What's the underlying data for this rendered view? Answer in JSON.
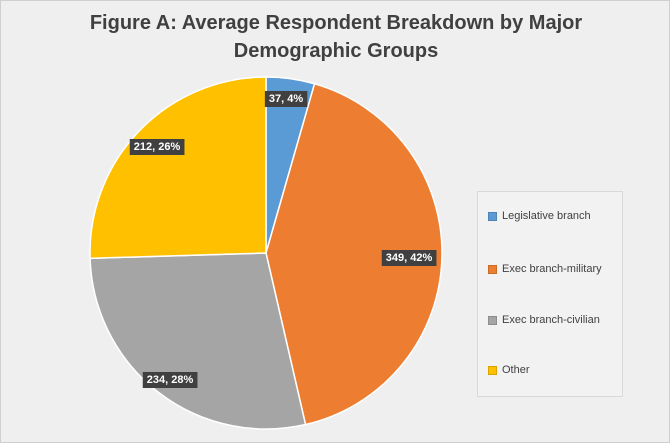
{
  "chart_data": {
    "type": "pie",
    "title": "Figure A: Average Respondent Breakdown by Major Demographic Groups",
    "title_lines": [
      "Figure A: Average Respondent Breakdown by Major",
      "Demographic Groups"
    ],
    "slices": [
      {
        "name": "Legislative branch",
        "value": 37,
        "percent": 4,
        "label": "37, 4%",
        "color": "#5b9bd5"
      },
      {
        "name": "Exec branch-military",
        "value": 349,
        "percent": 42,
        "label": "349, 42%",
        "color": "#ed7d31"
      },
      {
        "name": "Exec branch-civilian",
        "value": 234,
        "percent": 28,
        "label": "234, 28%",
        "color": "#a5a5a5"
      },
      {
        "name": "Other",
        "value": 212,
        "percent": 26,
        "label": "212, 26%",
        "color": "#ffc000"
      }
    ],
    "legend": {
      "placement": "right",
      "entries": [
        "Legislative branch",
        "Exec branch-military",
        "Exec branch-civilian",
        "Other"
      ]
    },
    "background": "#efefef"
  }
}
